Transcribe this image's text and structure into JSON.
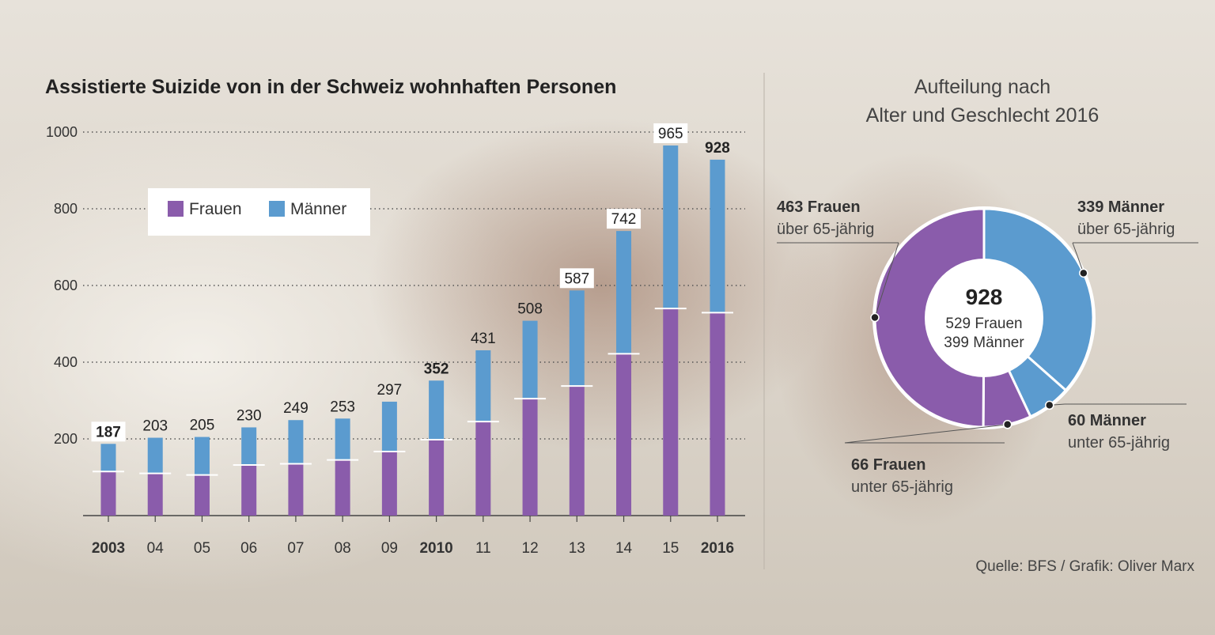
{
  "chart_data": [
    {
      "type": "bar",
      "stacked": true,
      "title": "Assistierte Suizide von in der Schweiz wohnhaften Personen",
      "categories": [
        "2003",
        "04",
        "05",
        "06",
        "07",
        "08",
        "09",
        "2010",
        "11",
        "12",
        "13",
        "14",
        "15",
        "2016"
      ],
      "bold_categories": [
        "2003",
        "2010",
        "2016"
      ],
      "series": [
        {
          "name": "Frauen",
          "color": "#8a5cab",
          "values": [
            115,
            110,
            106,
            132,
            135,
            145,
            167,
            198,
            245,
            305,
            338,
            422,
            540,
            529
          ]
        },
        {
          "name": "Männer",
          "color": "#5b9bcf",
          "values": [
            72,
            93,
            99,
            98,
            114,
            108,
            130,
            154,
            186,
            203,
            249,
            320,
            425,
            399
          ]
        }
      ],
      "totals": [
        187,
        203,
        205,
        230,
        249,
        253,
        297,
        352,
        431,
        508,
        587,
        742,
        965,
        928
      ],
      "boxed_totals": [
        187,
        587,
        742,
        965
      ],
      "bold_totals": [
        187,
        352,
        928
      ],
      "yticks": [
        200,
        400,
        600,
        800,
        1000
      ],
      "ylim": [
        0,
        1000
      ],
      "xlabel": "",
      "ylabel": "",
      "grid": true,
      "legend": {
        "position": "top-left",
        "entries": [
          "Frauen",
          "Männer"
        ]
      }
    },
    {
      "type": "pie",
      "donut": true,
      "title_lines": [
        "Aufteilung nach",
        "Alter und Geschlecht 2016"
      ],
      "center": {
        "total": "928",
        "line1": "529 Frauen",
        "line2": "399 Männer"
      },
      "slices": [
        {
          "label": "339 Männer",
          "sublabel": "über 65-jährig",
          "value": 339,
          "color": "#5b9bcf"
        },
        {
          "label": "60 Männer",
          "sublabel": "unter 65-jährig",
          "value": 60,
          "color": "#5b9bcf"
        },
        {
          "label": "66 Frauen",
          "sublabel": "unter 65-jährig",
          "value": 66,
          "color": "#8a5cab"
        },
        {
          "label": "463 Frauen",
          "sublabel": "über 65-jährig",
          "value": 463,
          "color": "#8a5cab"
        }
      ]
    }
  ],
  "source": "Quelle: BFS / Grafik: Oliver Marx"
}
